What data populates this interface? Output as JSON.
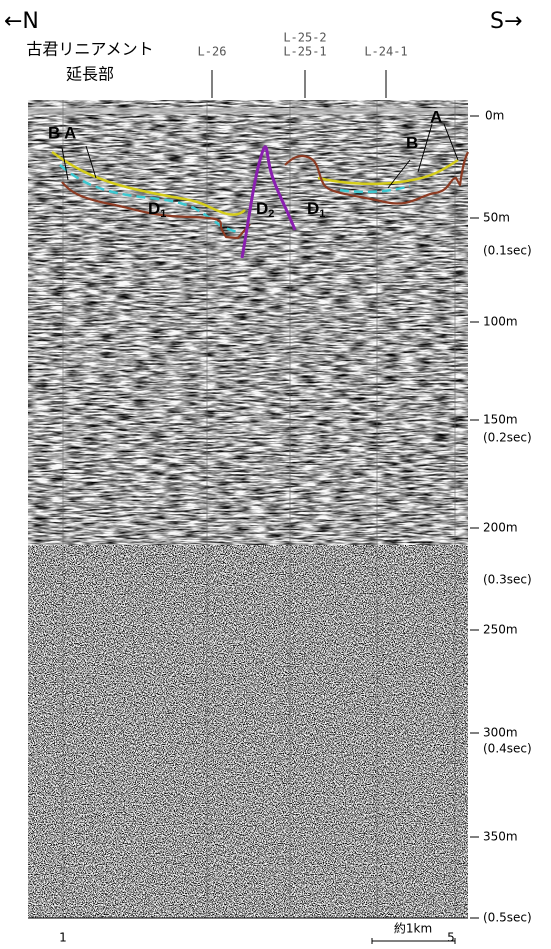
{
  "header": {
    "north": "←N",
    "south": "S→",
    "lineament": [
      "古君リニアメント",
      "延長部"
    ]
  },
  "survey_lines": [
    "L-26",
    "L-25-2",
    "L-25-1",
    "L-24-1"
  ],
  "depth_labels": [
    "0m",
    "50m",
    "(0.1sec)",
    "100m",
    "150m",
    "(0.2sec)",
    "200m",
    "(0.3sec)",
    "250m",
    "300m",
    "(0.4sec)",
    "350m",
    "(0.5sec)"
  ],
  "annotations": {
    "left_b": "B",
    "left_a": "A",
    "right_b": "B",
    "right_a": "A",
    "d1_left": {
      "letter": "D",
      "sub": "1"
    },
    "d2": {
      "letter": "D",
      "sub": "2"
    },
    "d1_right": {
      "letter": "D",
      "sub": "1"
    }
  },
  "bottom": {
    "left": "1",
    "right": "5",
    "scale": "約1km"
  }
}
